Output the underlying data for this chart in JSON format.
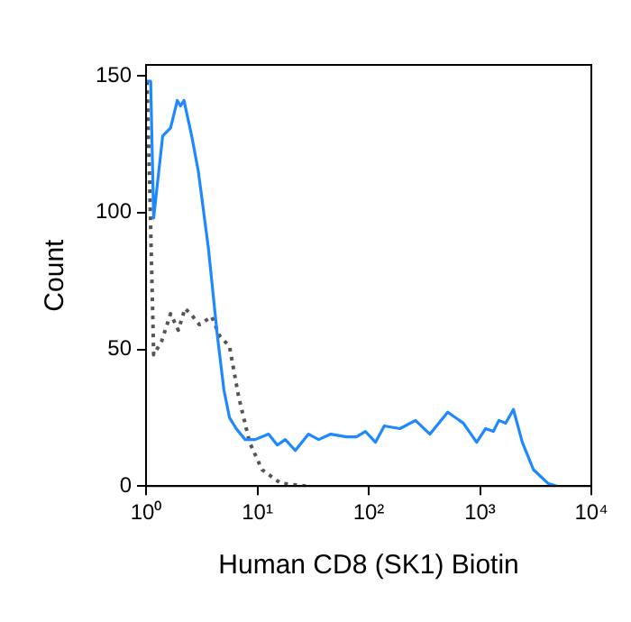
{
  "chart_data": {
    "type": "line",
    "xlabel": "Human CD8 (SK1) Biotin",
    "ylabel": "Count",
    "log": "x",
    "xlim": [
      1,
      10000
    ],
    "xticks": [
      {
        "value": 1,
        "label": "10⁰"
      },
      {
        "value": 10,
        "label": "10¹"
      },
      {
        "value": 100,
        "label": "10²"
      },
      {
        "value": 1000,
        "label": "10³"
      },
      {
        "value": 10000,
        "label": "10⁴"
      }
    ],
    "ylim": [
      0,
      154
    ],
    "yticks": [
      0,
      50,
      100,
      150
    ],
    "grid": false,
    "legend": false,
    "marker": "none",
    "series": [
      {
        "color": "#1e88ff",
        "line_style": "solid",
        "x": [
          1.02,
          1.1,
          1.17,
          1.41,
          1.66,
          1.91,
          2.04,
          2.19,
          2.57,
          2.95,
          3.63,
          4.37,
          5.01,
          5.62,
          6.46,
          7.76,
          9.55,
          12.6,
          15.1,
          17.8,
          21.9,
          28.8,
          35.5,
          45.7,
          63.1,
          77.6,
          93.3,
          115,
          138,
          191,
          263,
          355,
          513,
          708,
          933,
          1122,
          1318,
          1479,
          1698,
          1995,
          2399,
          3020,
          4074,
          4898
        ],
        "values": [
          148,
          148,
          98,
          128,
          131,
          141,
          139,
          141,
          128,
          115,
          87,
          55,
          35,
          25,
          21,
          17,
          17,
          19,
          15,
          17,
          13,
          19,
          17,
          19,
          18,
          18,
          20,
          16,
          22,
          21,
          24,
          19,
          27,
          23,
          16,
          21,
          20,
          24,
          23,
          28,
          16,
          6,
          1,
          0
        ]
      },
      {
        "color": "#555555",
        "line_style": "dotted",
        "x": [
          1.02,
          1.07,
          1.17,
          1.38,
          1.66,
          1.95,
          2.24,
          2.63,
          3.02,
          3.89,
          4.57,
          5.62,
          6.76,
          8.51,
          11,
          16.2,
          27.5
        ],
        "values": [
          148,
          115,
          48,
          53,
          63,
          57,
          65,
          62,
          59,
          62,
          55,
          51,
          33,
          16,
          6,
          1,
          0
        ]
      }
    ]
  }
}
